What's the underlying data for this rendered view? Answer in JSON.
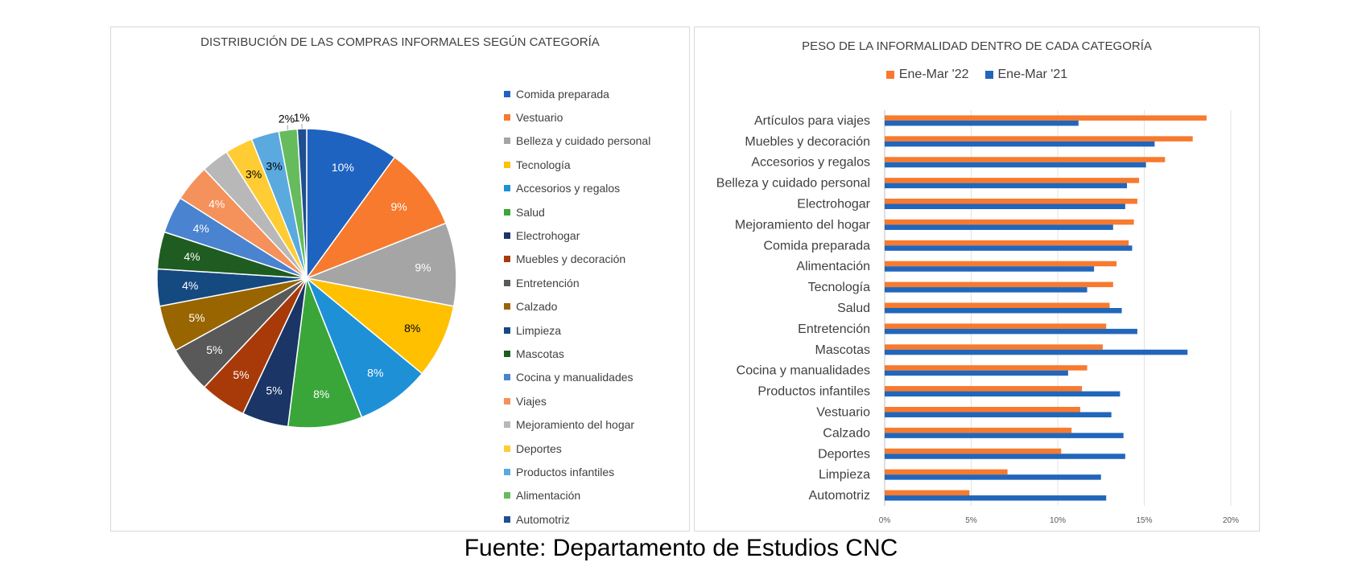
{
  "source": "Fuente: Departamento de Estudios CNC",
  "chart_data": [
    {
      "type": "pie",
      "title": "DISTRIBUCIÓN DE LAS COMPRAS INFORMALES SEGÚN CATEGORÍA",
      "legend_position": "right",
      "categories": [
        "Comida preparada",
        "Vestuario",
        "Belleza y cuidado personal",
        "Tecnología",
        "Accesorios y regalos",
        "Salud",
        "Electrohogar",
        "Muebles y decoración",
        "Entretención",
        "Calzado",
        "Limpieza",
        "Mascotas",
        "Cocina y manualidades",
        "Viajes",
        "Mejoramiento del hogar",
        "Deportes",
        "Productos infantiles",
        "Alimentación",
        "Automotriz"
      ],
      "values": [
        10,
        9,
        9,
        8,
        8,
        8,
        5,
        5,
        5,
        5,
        4,
        4,
        4,
        4,
        3,
        3,
        3,
        2,
        1
      ],
      "labels": [
        "10%",
        "9%",
        "9%",
        "8%",
        "8%",
        "8%",
        "5%",
        "5%",
        "5%",
        "5%",
        "4%",
        "4%",
        "4%",
        "4%",
        "",
        "3%",
        "3%",
        "2%",
        "1%"
      ],
      "colors": [
        "#1f63c0",
        "#f77a2e",
        "#a5a5a5",
        "#ffc000",
        "#1e90d6",
        "#3aa63a",
        "#1a3566",
        "#a83a0a",
        "#595959",
        "#986500",
        "#144a80",
        "#1e5c21",
        "#4a83d0",
        "#f5915a",
        "#b8b8b8",
        "#ffcc33",
        "#5aa9df",
        "#66bb5c",
        "#1f4e91"
      ]
    },
    {
      "type": "bar",
      "orientation": "horizontal",
      "title": "PESO DE LA INFORMALIDAD DENTRO DE CADA CATEGORÍA",
      "legend_position": "top",
      "categories": [
        "Artículos para viajes",
        "Muebles y decoración",
        "Accesorios y regalos",
        "Belleza y cuidado personal",
        "Electrohogar",
        "Mejoramiento del hogar",
        "Comida preparada",
        "Alimentación",
        "Tecnología",
        "Salud",
        "Entretención",
        "Mascotas",
        "Cocina y manualidades",
        "Productos infantiles",
        "Vestuario",
        "Calzado",
        "Deportes",
        "Limpieza",
        "Automotriz"
      ],
      "series": [
        {
          "name": "Ene-Mar '22",
          "color": "#f77a2e",
          "values": [
            18.6,
            17.8,
            16.2,
            14.7,
            14.6,
            14.4,
            14.1,
            13.4,
            13.2,
            13.0,
            12.8,
            12.6,
            11.7,
            11.4,
            11.3,
            10.8,
            10.2,
            7.1,
            4.9
          ]
        },
        {
          "name": "Ene-Mar '21",
          "color": "#2166bb",
          "values": [
            11.2,
            15.6,
            15.1,
            14.0,
            13.9,
            13.2,
            14.3,
            12.1,
            11.7,
            13.7,
            14.6,
            17.5,
            10.6,
            13.6,
            13.1,
            13.8,
            13.9,
            12.5,
            12.8
          ]
        }
      ],
      "xlim": [
        0,
        20
      ],
      "xticks": [
        "0%",
        "5%",
        "10%",
        "15%",
        "20%"
      ],
      "grid": true
    }
  ]
}
